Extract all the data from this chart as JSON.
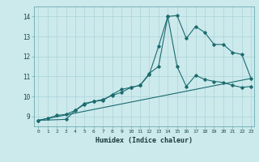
{
  "title": "",
  "xlabel": "Humidex (Indice chaleur)",
  "bg_color": "#cce9ec",
  "grid_color": "#aad4d8",
  "line_color": "#1a6b6e",
  "xlim": [
    -0.5,
    23.3
  ],
  "ylim": [
    8.5,
    14.5
  ],
  "xtick_vals": [
    0,
    1,
    2,
    3,
    4,
    5,
    6,
    7,
    8,
    9,
    10,
    11,
    12,
    13,
    14,
    15,
    16,
    17,
    18,
    19,
    20,
    21,
    22,
    23
  ],
  "xtick_labels": [
    "0",
    "1",
    "2",
    "3",
    "4",
    "5",
    "6",
    "7",
    "8",
    "9",
    "10",
    "11",
    "12",
    "13",
    "14",
    "15",
    "16",
    "17",
    "18",
    "19",
    "20",
    "21",
    "22",
    "23"
  ],
  "ytick_vals": [
    9,
    10,
    11,
    12,
    13,
    14
  ],
  "ytick_labels": [
    "9",
    "10",
    "11",
    "12",
    "13",
    "14"
  ],
  "series1_x": [
    0,
    1,
    2,
    3,
    4,
    5,
    6,
    7,
    8,
    9,
    10,
    11,
    12,
    13,
    14,
    15,
    16,
    17,
    18,
    19,
    20,
    21,
    22,
    23
  ],
  "series1_y": [
    8.8,
    8.9,
    9.05,
    9.1,
    9.3,
    9.65,
    9.75,
    9.85,
    10.05,
    10.2,
    10.45,
    10.55,
    11.1,
    12.5,
    14.0,
    14.05,
    12.9,
    13.5,
    13.2,
    12.6,
    12.6,
    12.2,
    12.1,
    10.9
  ],
  "series2_x": [
    0,
    3,
    4,
    5,
    6,
    7,
    8,
    9,
    10,
    11,
    12,
    13,
    14,
    15,
    16,
    17,
    18,
    19,
    20,
    21,
    22,
    23
  ],
  "series2_y": [
    8.8,
    8.85,
    9.3,
    9.6,
    9.75,
    9.8,
    10.1,
    10.35,
    10.45,
    10.55,
    11.15,
    11.5,
    14.0,
    11.5,
    10.5,
    11.05,
    10.85,
    10.75,
    10.7,
    10.55,
    10.45,
    10.5
  ],
  "series3_x": [
    0,
    23
  ],
  "series3_y": [
    8.8,
    10.9
  ]
}
